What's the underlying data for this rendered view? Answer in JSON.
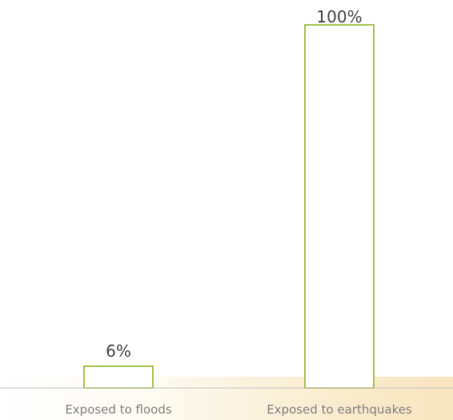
{
  "chart_data": {
    "type": "bar",
    "categories": [
      "Exposed to floods",
      "Exposed to earthquakes"
    ],
    "values": [
      6,
      100
    ],
    "value_labels": [
      "6%",
      "100%"
    ],
    "ylim": [
      0,
      100
    ],
    "title": "",
    "xlabel": "",
    "ylabel": "",
    "grid": false,
    "legend": "none",
    "colors": {
      "bar_stroke": "#8cb319",
      "bar_fill": "#ffffff",
      "axis": "#bfbfbf",
      "category_text": "#7f7f7f",
      "value_text": "#404040"
    }
  }
}
